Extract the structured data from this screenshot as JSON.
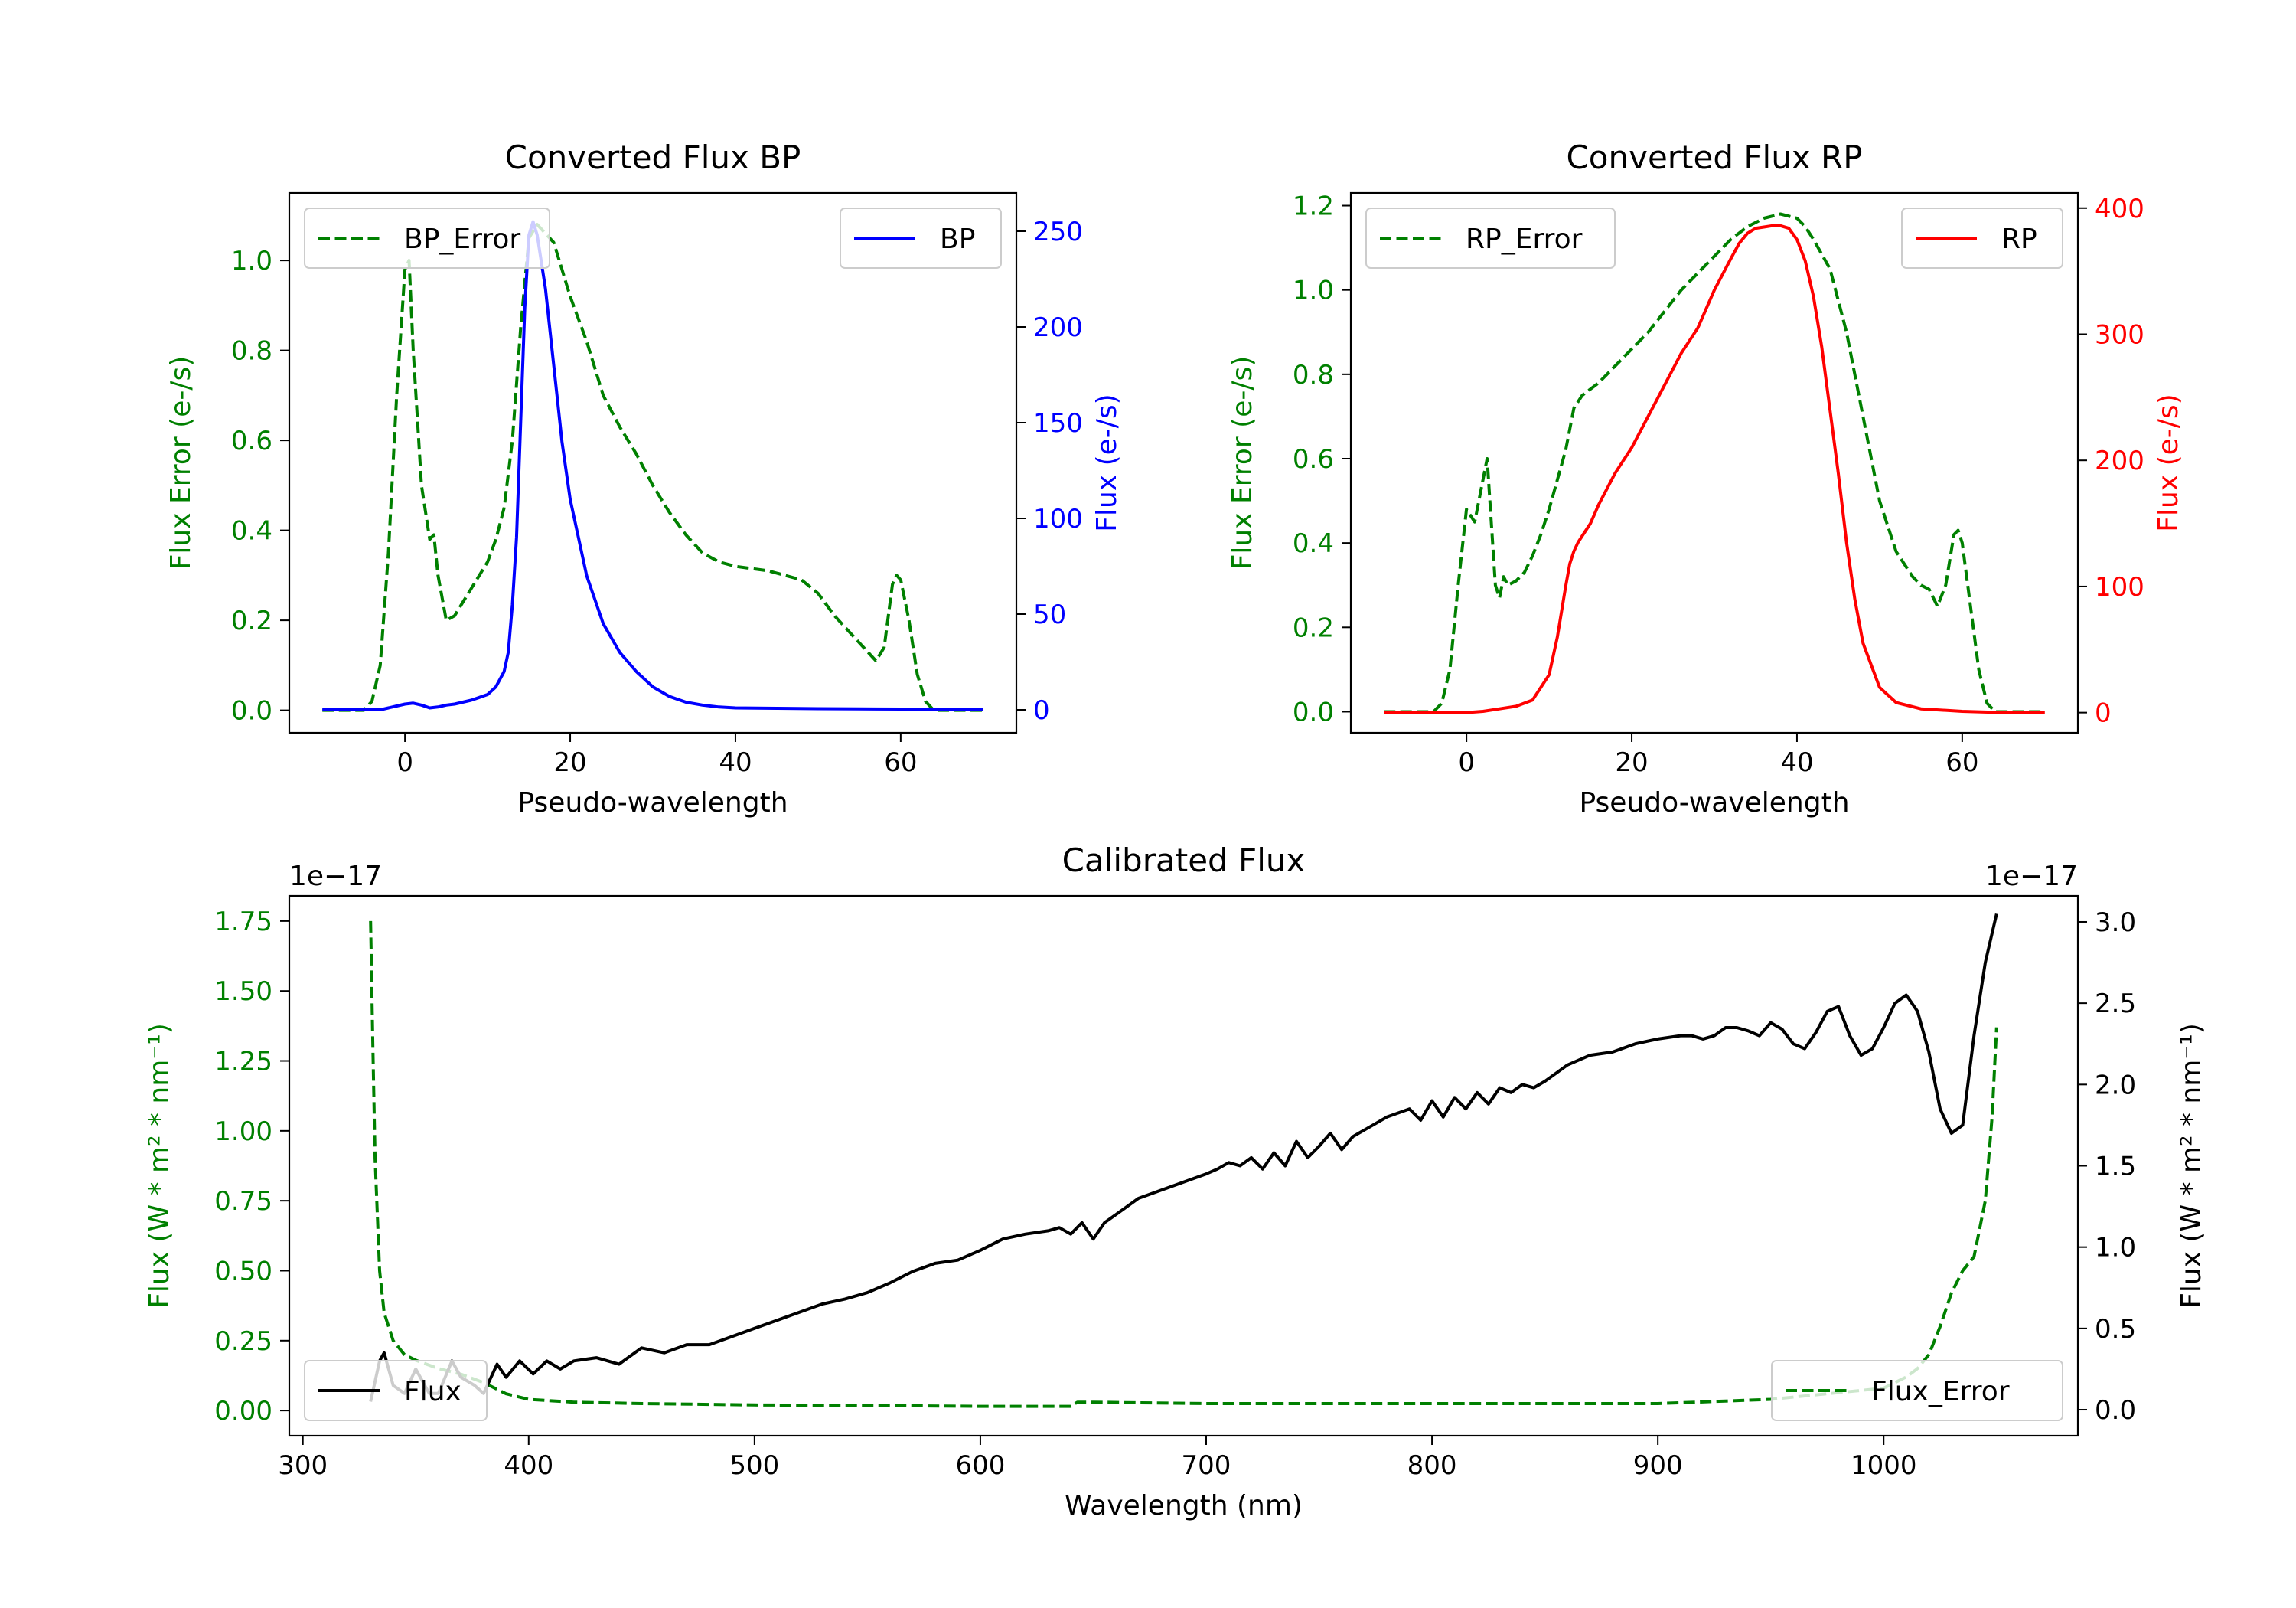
{
  "colors": {
    "error": "#008000",
    "bp": "#0000ff",
    "rp": "#ff0000",
    "flux": "#000000",
    "axis": "#000000"
  },
  "chart_data": [
    {
      "id": "bp",
      "type": "line",
      "title": "Converted Flux BP",
      "xlabel": "Pseudo-wavelength",
      "ylabel_left": "Flux Error (e-/s)",
      "ylabel_right": "Flux (e-/s)",
      "xlim": [
        -14,
        74
      ],
      "ylim_left": [
        -0.05,
        1.15
      ],
      "ylim_right": [
        -12,
        270
      ],
      "xticks": [
        0,
        20,
        40,
        60
      ],
      "xtick_labels": [
        "0",
        "20",
        "40",
        "60"
      ],
      "yticks_left": [
        0.0,
        0.2,
        0.4,
        0.6,
        0.8,
        1.0
      ],
      "ytick_labels_left": [
        "0.0",
        "0.2",
        "0.4",
        "0.6",
        "0.8",
        "1.0"
      ],
      "yticks_right": [
        0,
        50,
        100,
        150,
        200,
        250
      ],
      "ytick_labels_right": [
        "0",
        "50",
        "100",
        "150",
        "200",
        "250"
      ],
      "legend_left": {
        "label": "BP_Error",
        "position": "upper left"
      },
      "legend_right": {
        "label": "BP",
        "position": "upper right"
      },
      "series_error": {
        "name": "BP_Error",
        "x": [
          -10,
          -5,
          -4,
          -3,
          -2,
          -1,
          0,
          0.5,
          1,
          2,
          3,
          3.5,
          4,
          5,
          6,
          7,
          8,
          9,
          10,
          11,
          12,
          13,
          14,
          15,
          16,
          17,
          18,
          19,
          20,
          22,
          24,
          26,
          28,
          30,
          32,
          34,
          36,
          38,
          40,
          42,
          44,
          46,
          48,
          50,
          52,
          54,
          56,
          57,
          58,
          59,
          59.5,
          60,
          61,
          62,
          63,
          64,
          65,
          66,
          70
        ],
        "values": [
          0,
          0,
          0.02,
          0.1,
          0.35,
          0.7,
          0.98,
          1.0,
          0.8,
          0.5,
          0.38,
          0.39,
          0.3,
          0.2,
          0.21,
          0.24,
          0.27,
          0.3,
          0.33,
          0.38,
          0.45,
          0.6,
          0.85,
          1.05,
          1.08,
          1.06,
          1.04,
          0.98,
          0.92,
          0.82,
          0.7,
          0.63,
          0.57,
          0.5,
          0.44,
          0.39,
          0.35,
          0.33,
          0.32,
          0.315,
          0.31,
          0.3,
          0.29,
          0.26,
          0.21,
          0.17,
          0.13,
          0.11,
          0.14,
          0.28,
          0.3,
          0.29,
          0.2,
          0.08,
          0.02,
          0,
          0,
          0,
          0
        ]
      },
      "series_flux": {
        "name": "BP",
        "x": [
          -10,
          -5,
          -3,
          -2,
          -1,
          0,
          1,
          2,
          3,
          4,
          5,
          6,
          7,
          8,
          9,
          10,
          11,
          12,
          12.5,
          13,
          13.5,
          14,
          14.5,
          15,
          15.5,
          16,
          17,
          18,
          19,
          20,
          22,
          24,
          26,
          28,
          30,
          32,
          34,
          36,
          38,
          40,
          45,
          50,
          55,
          60,
          65,
          70
        ],
        "values": [
          0,
          0,
          0,
          1,
          2,
          3,
          3.5,
          2.5,
          1,
          1.5,
          2.5,
          3,
          4,
          5,
          6.5,
          8,
          12,
          20,
          30,
          55,
          90,
          150,
          210,
          248,
          255,
          248,
          220,
          180,
          140,
          110,
          70,
          45,
          30,
          20,
          12,
          7,
          4,
          2.5,
          1.5,
          1,
          0.8,
          0.6,
          0.5,
          0.4,
          0.3,
          0
        ]
      }
    },
    {
      "id": "rp",
      "type": "line",
      "title": "Converted Flux RP",
      "xlabel": "Pseudo-wavelength",
      "ylabel_left": "Flux Error (e-/s)",
      "ylabel_right": "Flux (e-/s)",
      "xlim": [
        -14,
        74
      ],
      "ylim_left": [
        -0.05,
        1.23
      ],
      "ylim_right": [
        -16,
        412
      ],
      "xticks": [
        0,
        20,
        40,
        60
      ],
      "xtick_labels": [
        "0",
        "20",
        "40",
        "60"
      ],
      "yticks_left": [
        0.0,
        0.2,
        0.4,
        0.6,
        0.8,
        1.0,
        1.2
      ],
      "ytick_labels_left": [
        "0.0",
        "0.2",
        "0.4",
        "0.6",
        "0.8",
        "1.0",
        "1.2"
      ],
      "yticks_right": [
        0,
        100,
        200,
        300,
        400
      ],
      "ytick_labels_right": [
        "0",
        "100",
        "200",
        "300",
        "400"
      ],
      "legend_left": {
        "label": "RP_Error",
        "position": "upper left"
      },
      "legend_right": {
        "label": "RP",
        "position": "upper right"
      },
      "series_error": {
        "name": "RP_Error",
        "x": [
          -10,
          -4,
          -3,
          -2,
          -1,
          0,
          1,
          2,
          2.5,
          3,
          3.5,
          4,
          4.5,
          5,
          6,
          7,
          8,
          9,
          10,
          11,
          12,
          13,
          14,
          16,
          18,
          20,
          22,
          24,
          26,
          28,
          30,
          32,
          34,
          36,
          38,
          40,
          41,
          42,
          44,
          46,
          48,
          50,
          52,
          54,
          55,
          56,
          57,
          58,
          59,
          59.5,
          60,
          61,
          62,
          63,
          64,
          65,
          70
        ],
        "values": [
          0,
          0,
          0.02,
          0.1,
          0.3,
          0.48,
          0.45,
          0.55,
          0.6,
          0.45,
          0.3,
          0.27,
          0.32,
          0.3,
          0.31,
          0.33,
          0.37,
          0.42,
          0.48,
          0.55,
          0.62,
          0.72,
          0.75,
          0.78,
          0.82,
          0.86,
          0.9,
          0.95,
          1.0,
          1.04,
          1.08,
          1.12,
          1.15,
          1.17,
          1.18,
          1.17,
          1.15,
          1.12,
          1.05,
          0.9,
          0.7,
          0.5,
          0.38,
          0.32,
          0.3,
          0.29,
          0.25,
          0.3,
          0.42,
          0.43,
          0.4,
          0.25,
          0.1,
          0.02,
          0,
          0,
          0
        ]
      },
      "series_flux": {
        "name": "RP",
        "x": [
          -10,
          -5,
          0,
          2,
          4,
          6,
          8,
          10,
          11,
          12,
          12.5,
          13,
          13.5,
          14,
          15,
          16,
          18,
          20,
          22,
          24,
          26,
          28,
          30,
          32,
          33,
          34,
          35,
          36,
          37,
          38,
          39,
          40,
          41,
          42,
          43,
          44,
          45,
          46,
          47,
          48,
          50,
          52,
          55,
          60,
          65,
          70
        ],
        "values": [
          0,
          0,
          0,
          1,
          3,
          5,
          10,
          30,
          60,
          100,
          118,
          128,
          135,
          140,
          150,
          165,
          190,
          210,
          235,
          260,
          285,
          305,
          335,
          360,
          372,
          380,
          384,
          385,
          386,
          386,
          384,
          375,
          358,
          330,
          290,
          240,
          190,
          135,
          90,
          55,
          20,
          8,
          3,
          1,
          0,
          0
        ]
      }
    },
    {
      "id": "calibrated",
      "type": "line",
      "title": "Calibrated Flux",
      "xlabel": "Wavelength (nm)",
      "ylabel_left": "Flux (W * m² * nm⁻¹)",
      "ylabel_right": "Flux (W * m² * nm⁻¹)",
      "offset_left": "1e−17",
      "offset_right": "1e−17",
      "xlim": [
        294,
        1086
      ],
      "ylim_left": [
        -0.09,
        1.84
      ],
      "ylim_right": [
        -0.16,
        3.16
      ],
      "xticks": [
        300,
        400,
        500,
        600,
        700,
        800,
        900,
        1000
      ],
      "xtick_labels": [
        "300",
        "400",
        "500",
        "600",
        "700",
        "800",
        "900",
        "1000"
      ],
      "yticks_left": [
        0.0,
        0.25,
        0.5,
        0.75,
        1.0,
        1.25,
        1.5,
        1.75
      ],
      "ytick_labels_left": [
        "0.00",
        "0.25",
        "0.50",
        "0.75",
        "1.00",
        "1.25",
        "1.50",
        "1.75"
      ],
      "yticks_right": [
        0.0,
        0.5,
        1.0,
        1.5,
        2.0,
        2.5,
        3.0
      ],
      "ytick_labels_right": [
        "0.0",
        "0.5",
        "1.0",
        "1.5",
        "2.0",
        "2.5",
        "3.0"
      ],
      "legend_left": {
        "label": "Flux",
        "position": "lower left"
      },
      "legend_right": {
        "label": "Flux_Error",
        "position": "lower right"
      },
      "series_error": {
        "name": "Flux_Error",
        "x": [
          330,
          331,
          332,
          334,
          336,
          340,
          345,
          350,
          360,
          370,
          380,
          390,
          400,
          420,
          450,
          500,
          550,
          600,
          640,
          643,
          650,
          700,
          800,
          900,
          950,
          1000,
          1010,
          1015,
          1020,
          1025,
          1030,
          1035,
          1040,
          1045,
          1048,
          1050
        ],
        "values": [
          1.75,
          1.3,
          0.9,
          0.5,
          0.35,
          0.25,
          0.2,
          0.18,
          0.15,
          0.13,
          0.1,
          0.06,
          0.04,
          0.03,
          0.025,
          0.02,
          0.018,
          0.015,
          0.015,
          0.03,
          0.03,
          0.025,
          0.025,
          0.025,
          0.04,
          0.08,
          0.12,
          0.15,
          0.2,
          0.3,
          0.42,
          0.5,
          0.55,
          0.75,
          1.05,
          1.37
        ]
      },
      "series_flux": {
        "name": "Flux",
        "x": [
          330,
          334,
          336,
          340,
          345,
          350,
          356,
          360,
          366,
          370,
          376,
          380,
          386,
          390,
          396,
          402,
          408,
          414,
          420,
          430,
          440,
          450,
          460,
          470,
          480,
          490,
          500,
          510,
          520,
          530,
          540,
          550,
          560,
          570,
          580,
          590,
          600,
          610,
          620,
          630,
          635,
          640,
          645,
          650,
          655,
          660,
          670,
          680,
          690,
          700,
          705,
          710,
          715,
          720,
          725,
          730,
          735,
          740,
          745,
          750,
          755,
          760,
          765,
          770,
          780,
          790,
          795,
          800,
          805,
          810,
          815,
          820,
          825,
          830,
          835,
          840,
          845,
          850,
          860,
          870,
          880,
          890,
          900,
          910,
          915,
          920,
          925,
          930,
          935,
          940,
          945,
          950,
          955,
          960,
          965,
          970,
          975,
          980,
          985,
          990,
          995,
          1000,
          1005,
          1010,
          1015,
          1020,
          1025,
          1030,
          1035,
          1040,
          1045,
          1050
        ],
        "values": [
          0.05,
          0.3,
          0.35,
          0.15,
          0.1,
          0.25,
          0.1,
          0.1,
          0.3,
          0.2,
          0.15,
          0.1,
          0.28,
          0.2,
          0.3,
          0.22,
          0.3,
          0.25,
          0.3,
          0.32,
          0.28,
          0.38,
          0.35,
          0.4,
          0.4,
          0.45,
          0.5,
          0.55,
          0.6,
          0.65,
          0.68,
          0.72,
          0.78,
          0.85,
          0.9,
          0.92,
          0.98,
          1.05,
          1.08,
          1.1,
          1.12,
          1.08,
          1.15,
          1.05,
          1.15,
          1.2,
          1.3,
          1.35,
          1.4,
          1.45,
          1.48,
          1.52,
          1.5,
          1.55,
          1.48,
          1.58,
          1.5,
          1.65,
          1.55,
          1.62,
          1.7,
          1.6,
          1.68,
          1.72,
          1.8,
          1.85,
          1.78,
          1.9,
          1.8,
          1.92,
          1.85,
          1.95,
          1.88,
          1.98,
          1.95,
          2.0,
          1.98,
          2.02,
          2.12,
          2.18,
          2.2,
          2.25,
          2.28,
          2.3,
          2.3,
          2.28,
          2.3,
          2.35,
          2.35,
          2.33,
          2.3,
          2.38,
          2.34,
          2.25,
          2.22,
          2.32,
          2.45,
          2.48,
          2.3,
          2.18,
          2.22,
          2.35,
          2.5,
          2.55,
          2.45,
          2.2,
          1.85,
          1.7,
          1.75,
          2.3,
          2.75,
          3.05
        ]
      }
    }
  ]
}
